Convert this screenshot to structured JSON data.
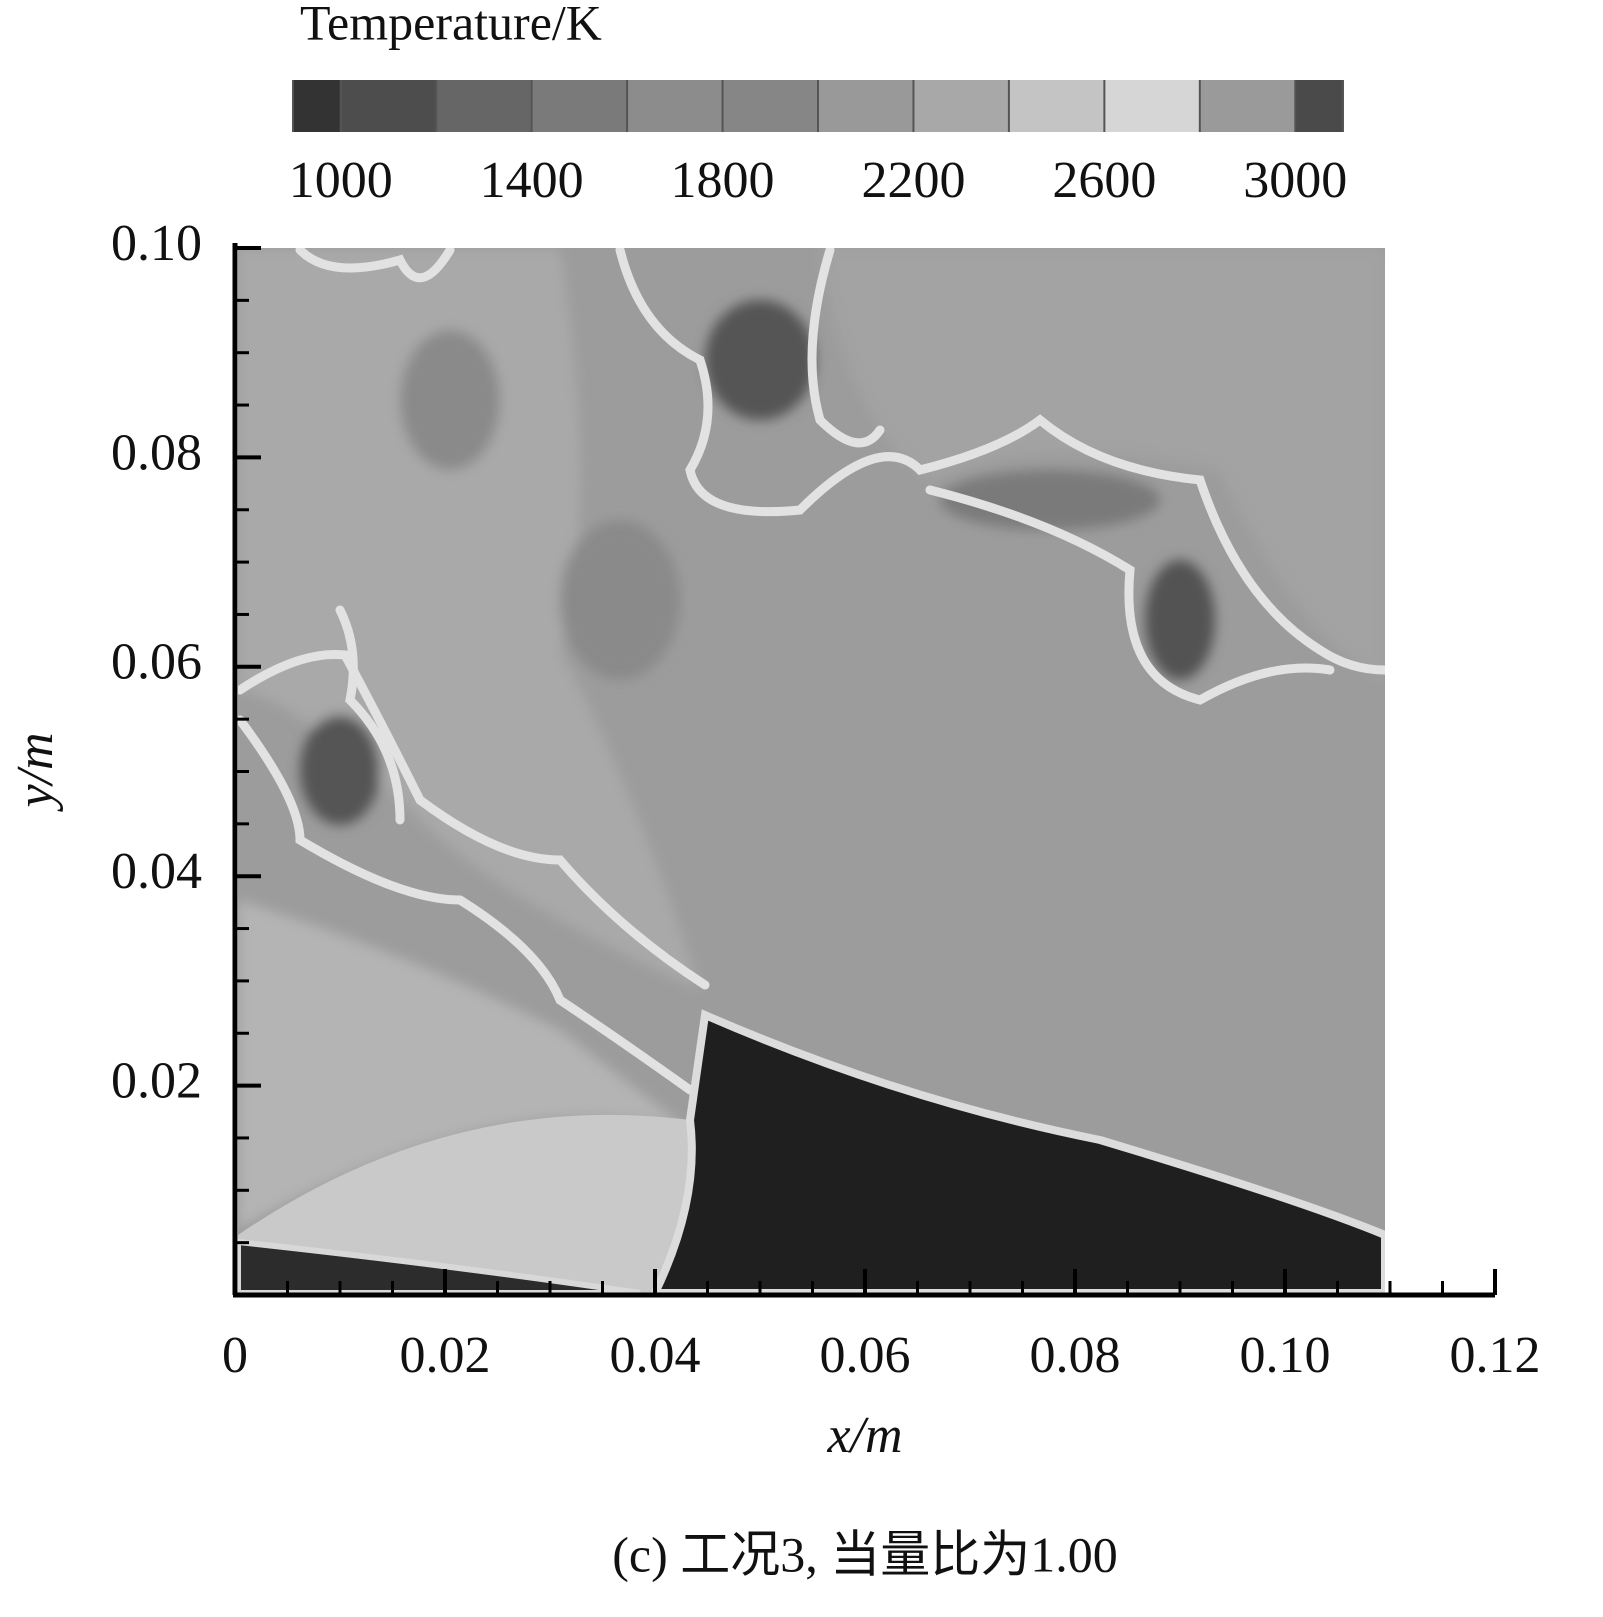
{
  "chart_data": {
    "type": "contour",
    "x_label": "x/m",
    "y_label": "y/m",
    "caption": "(c) 工况3, 当量比为1.00",
    "xlim": [
      0,
      0.12
    ],
    "ylim": [
      0,
      0.1
    ],
    "xticks": [
      0,
      0.02,
      0.04,
      0.06,
      0.08,
      {
        "value": 0.1,
        "label": "0.10"
      },
      0.12
    ],
    "yticks": [
      0.02,
      0.04,
      0.06,
      0.08,
      {
        "value": 0.1,
        "label": "0.10"
      }
    ],
    "xminorticks": [
      0.005,
      0.01,
      0.015,
      0.025,
      0.03,
      0.035,
      0.045,
      0.05,
      0.055,
      0.065,
      0.07,
      0.075,
      0.085,
      0.09,
      0.095,
      0.105,
      0.11,
      0.115
    ],
    "yminorticks": [
      0.005,
      0.01,
      0.015,
      0.025,
      0.03,
      0.035,
      0.045,
      0.05,
      0.055,
      0.065,
      0.07,
      0.075,
      0.085,
      0.09,
      0.095
    ],
    "colorbar": {
      "title": "Temperature/K",
      "lim": [
        900,
        3100
      ],
      "ticks": [
        1000,
        1400,
        1800,
        2200,
        2600,
        3000
      ],
      "levels": [
        900,
        1000,
        1200,
        1400,
        1600,
        1800,
        2000,
        2200,
        2400,
        2600,
        2800,
        3000,
        3100
      ],
      "colors": [
        "#333333",
        "#4d4d4d",
        "#666666",
        "#7a7a7a",
        "#8c8c8c",
        "#868686",
        "#999999",
        "#a8a8a8",
        "#c4c4c4",
        "#d6d6d6",
        "#9a9a9a",
        "#4a4a4a"
      ]
    }
  }
}
